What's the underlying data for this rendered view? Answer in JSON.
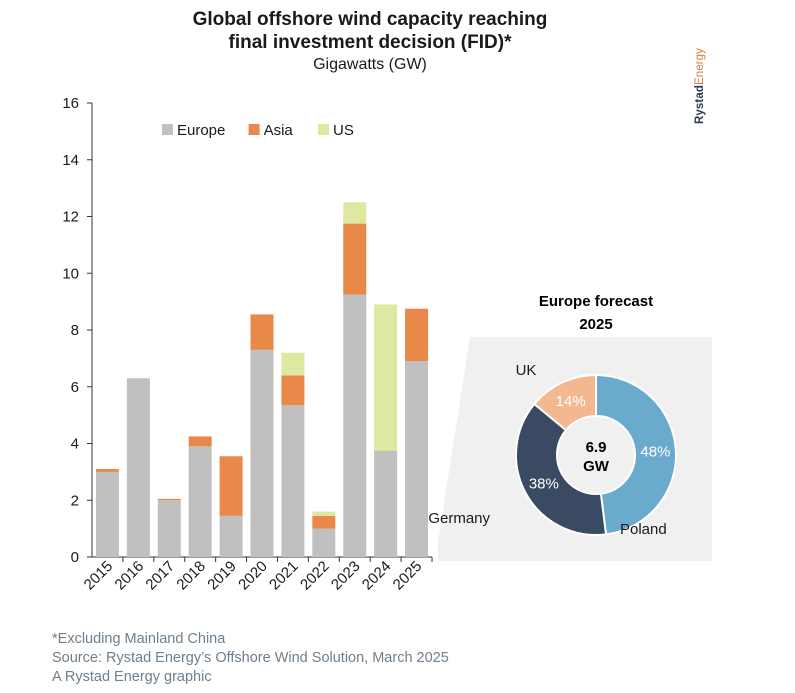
{
  "title_lines": [
    "Global offshore wind capacity reaching",
    "final investment decision (FID)*"
  ],
  "subtitle": "Gigawatts (GW)",
  "logo": {
    "part1": "Rystad",
    "part2": "Energy"
  },
  "colors": {
    "Europe": "#c0c0c0",
    "Asia": "#e8894a",
    "US": "#dfe8a0",
    "Poland": "#6aabcd",
    "Germany": "#3a4a63",
    "UK": "#f3b890",
    "inset_bg": "#f0f0f0"
  },
  "chart_data": {
    "type": "bar",
    "stacked": true,
    "categories": [
      "2015",
      "2016",
      "2017",
      "2018",
      "2019",
      "2020",
      "2021",
      "2022",
      "2023",
      "2024",
      "2025"
    ],
    "series": [
      {
        "name": "Europe",
        "values": [
          3.0,
          6.3,
          2.0,
          3.9,
          1.45,
          7.3,
          5.35,
          1.0,
          9.25,
          3.75,
          6.9
        ]
      },
      {
        "name": "Asia",
        "values": [
          0.1,
          0,
          0.05,
          0.35,
          2.1,
          1.25,
          1.05,
          0.45,
          2.5,
          0,
          1.85
        ]
      },
      {
        "name": "US",
        "values": [
          0,
          0,
          0,
          0,
          0,
          0,
          0.8,
          0.15,
          0.75,
          5.15,
          0
        ]
      }
    ],
    "ylim": [
      0,
      16
    ],
    "yticks": [
      "0",
      "2",
      "4",
      "6",
      "8",
      "10",
      "12",
      "14",
      "16"
    ],
    "legend_position": "top-left",
    "inset": {
      "type": "pie",
      "title_lines": [
        "Europe forecast",
        "2025"
      ],
      "center_lines": [
        "6.9",
        "GW"
      ],
      "slices": [
        {
          "name": "Poland",
          "value": 48,
          "label": "48%"
        },
        {
          "name": "Germany",
          "value": 38,
          "label": "38%"
        },
        {
          "name": "UK",
          "value": 14,
          "label": "14%"
        }
      ]
    }
  },
  "footer": [
    "*Excluding Mainland China",
    "Source: Rystad Energy’s Offshore Wind Solution, March 2025",
    "A Rystad Energy graphic"
  ]
}
